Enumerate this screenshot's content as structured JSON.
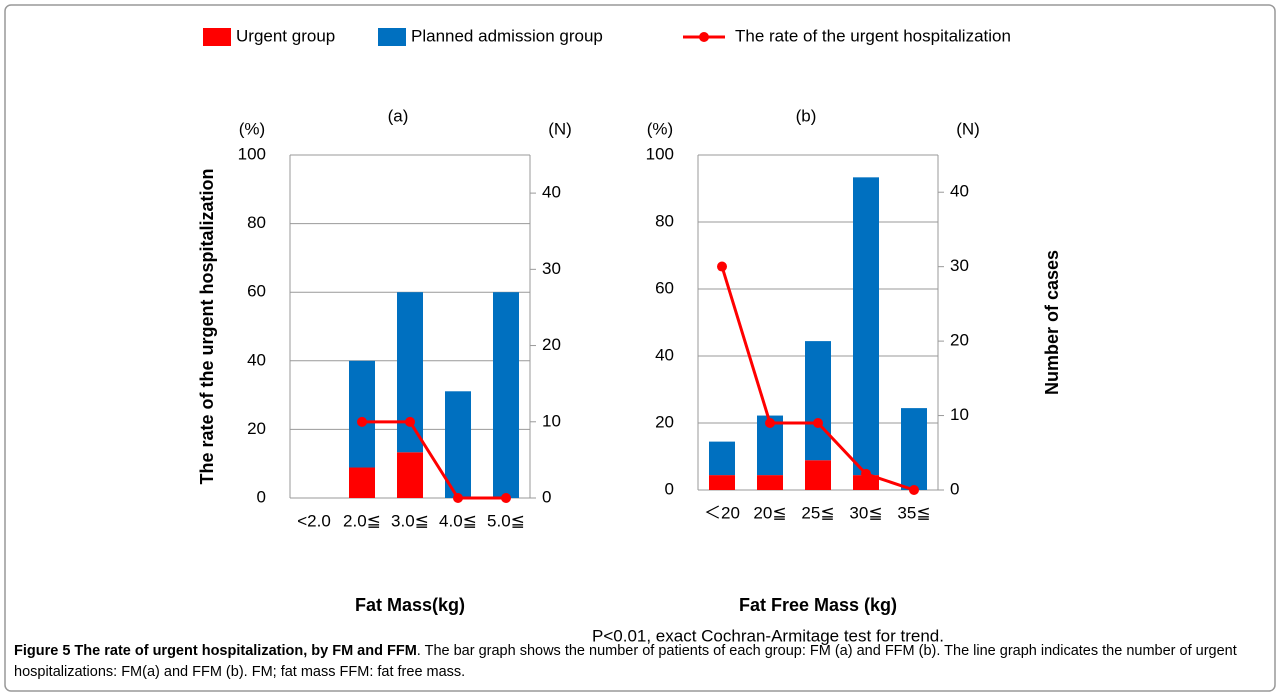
{
  "legend_position": "top",
  "note": "P<0.01, exact Cochran-Armitage test for trend.",
  "caption": {
    "label": "Figure 5 The rate of urgent hospitalization, by FM and FFM",
    "text": ". The bar graph shows the number of patients of each group: FM (a) and FFM (b). The line graph indicates the number of urgent hospitalizations: FM(a) and FFM (b). FM; fat mass FFM: fat free mass."
  },
  "chart_data": [
    {
      "type": "bar",
      "stacked": true,
      "title": "(a)",
      "xlabel": "Fat Mass(kg)",
      "ylabel": "The rate  of the urgent hospitalization",
      "yunit": "(%)",
      "y2unit": "(N)",
      "categories": [
        "<2.0",
        "2.0≦",
        "3.0≦",
        "4.0≦",
        "5.0≦"
      ],
      "series": [
        {
          "name": "Urgent group",
          "color": "#ff0000",
          "axis": "y2",
          "values": [
            0,
            4,
            6,
            0,
            0
          ]
        },
        {
          "name": "Planned admission group",
          "color": "#0070c0",
          "axis": "y2",
          "values": [
            0,
            14,
            21,
            14,
            27
          ]
        },
        {
          "name": "The rate of the  urgent hospitalization",
          "type": "line",
          "color": "#ff0000",
          "values": [
            null,
            22.2,
            22.2,
            0,
            0
          ]
        }
      ],
      "ylim": [
        0,
        100
      ],
      "yticks": [
        0,
        20,
        40,
        60,
        80,
        100
      ],
      "y2lim": [
        0,
        45
      ],
      "y2ticks": [
        0,
        10,
        20,
        30,
        40
      ],
      "grid": true
    },
    {
      "type": "bar",
      "stacked": true,
      "title": "(b)",
      "xlabel": "Fat Free Mass (kg)",
      "y2label": "Number of cases",
      "yunit": "(%)",
      "y2unit": "(N)",
      "categories": [
        "＜20",
        "20≦",
        "25≦",
        "30≦",
        "35≦"
      ],
      "series": [
        {
          "color": "#ff0000",
          "axis": "y2",
          "values": [
            2,
            2,
            4,
            2,
            0
          ]
        },
        {
          "color": "#0070c0",
          "axis": "y2",
          "values": [
            4.5,
            8,
            16,
            40,
            11
          ]
        },
        {
          "type": "line",
          "color": "#ff0000",
          "values": [
            66.7,
            20,
            20,
            4.8,
            0
          ]
        }
      ],
      "ylim": [
        0,
        100
      ],
      "yticks": [
        0,
        20,
        40,
        60,
        80,
        100
      ],
      "y2lim": [
        0,
        45
      ],
      "y2ticks": [
        0,
        10,
        20,
        30,
        40
      ],
      "grid": true
    }
  ]
}
